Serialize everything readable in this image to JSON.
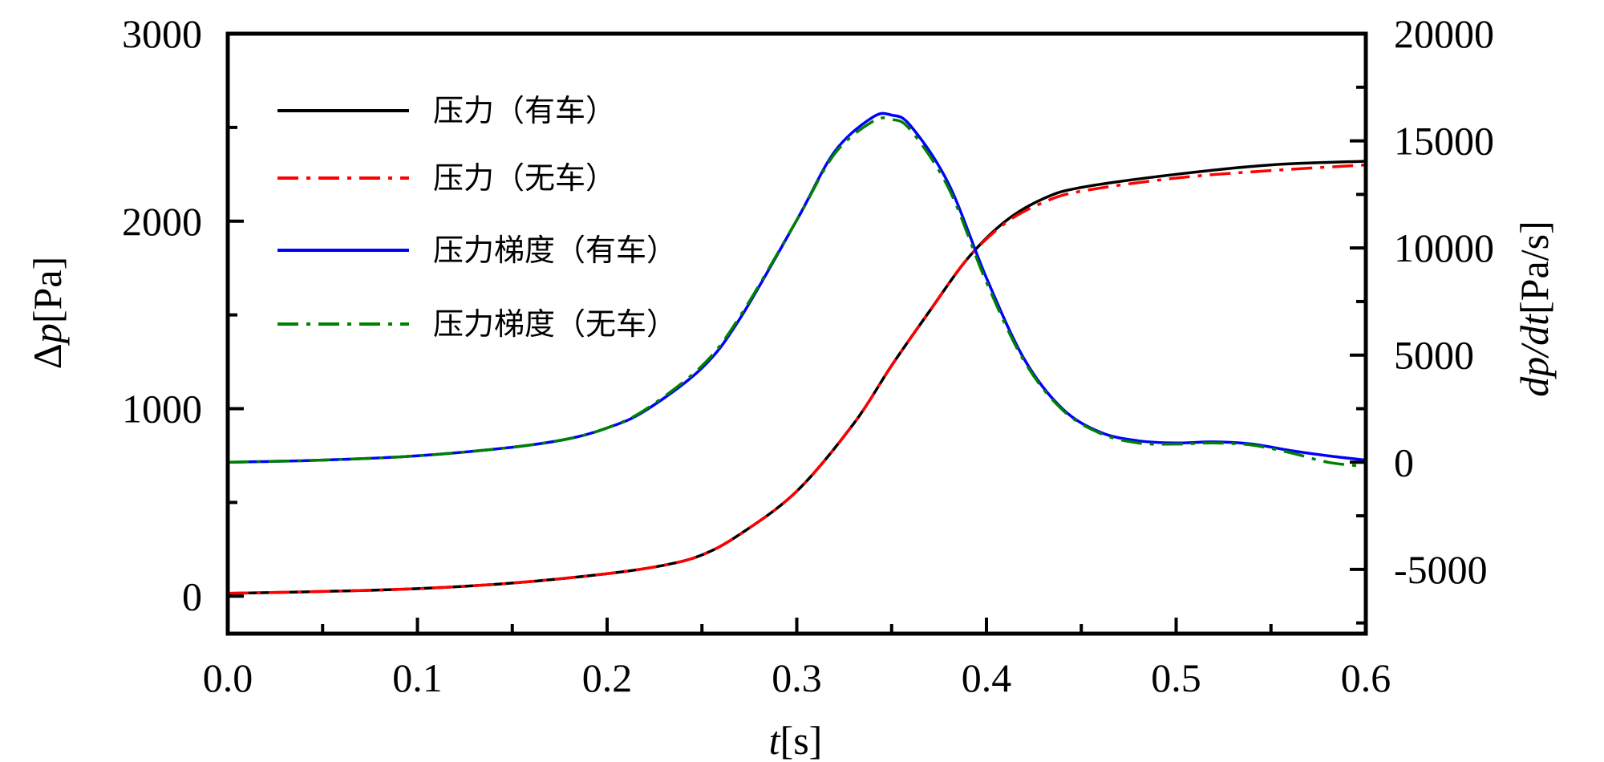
{
  "chart_data": {
    "type": "line",
    "x_axis": {
      "label_italic": "t",
      "label_rest": "[s]",
      "range": [
        0.0,
        0.6
      ],
      "ticks": [
        "0.0",
        "0.1",
        "0.2",
        "0.3",
        "0.4",
        "0.5",
        "0.6"
      ],
      "minor_step": 0.05
    },
    "y_axis_left": {
      "label_prefix": "Δ",
      "label_italic": "p",
      "label_rest": "[Pa]",
      "range": [
        -200,
        3000
      ],
      "ticks": [
        "0",
        "1000",
        "2000",
        "3000"
      ],
      "minor_step": 500
    },
    "y_axis_right": {
      "label_italic": "dp/dt",
      "label_rest": "[Pa/s]",
      "range": [
        -8000,
        20000
      ],
      "ticks": [
        "-5000",
        "0",
        "5000",
        "10000",
        "15000",
        "20000"
      ],
      "minor_step": 2500
    },
    "legend_position": "top-left",
    "series": [
      {
        "name": "压力（有车）",
        "axis": "left",
        "color": "#000000",
        "style": "solid",
        "x": [
          0.0,
          0.05,
          0.1,
          0.15,
          0.2,
          0.23,
          0.25,
          0.27,
          0.3,
          0.33,
          0.35,
          0.37,
          0.39,
          0.41,
          0.43,
          0.45,
          0.5,
          0.55,
          0.6
        ],
        "y": [
          15,
          25,
          40,
          70,
          120,
          165,
          220,
          330,
          560,
          920,
          1230,
          1520,
          1800,
          2000,
          2120,
          2180,
          2250,
          2300,
          2320
        ]
      },
      {
        "name": "压力（无车）",
        "axis": "left",
        "color": "#ff0000",
        "style": "dashdot",
        "x": [
          0.0,
          0.05,
          0.1,
          0.15,
          0.2,
          0.23,
          0.25,
          0.27,
          0.3,
          0.33,
          0.35,
          0.37,
          0.39,
          0.41,
          0.43,
          0.45,
          0.5,
          0.55,
          0.6
        ],
        "y": [
          15,
          25,
          40,
          70,
          120,
          165,
          220,
          330,
          560,
          920,
          1230,
          1520,
          1800,
          1990,
          2100,
          2160,
          2230,
          2270,
          2300
        ]
      },
      {
        "name": "压力梯度（有车）",
        "axis": "right",
        "color": "#0000ff",
        "style": "solid",
        "x": [
          0.0,
          0.05,
          0.1,
          0.15,
          0.18,
          0.2,
          0.22,
          0.25,
          0.27,
          0.3,
          0.32,
          0.34,
          0.35,
          0.36,
          0.38,
          0.4,
          0.42,
          0.44,
          0.46,
          0.48,
          0.5,
          0.52,
          0.54,
          0.56,
          0.58,
          0.6
        ],
        "y": [
          0,
          100,
          300,
          700,
          1100,
          1600,
          2400,
          4400,
          6700,
          11300,
          14500,
          16100,
          16200,
          15700,
          13000,
          8600,
          4800,
          2500,
          1400,
          1000,
          900,
          950,
          850,
          550,
          300,
          100
        ]
      },
      {
        "name": "压力梯度（无车）",
        "axis": "right",
        "color": "#008000",
        "style": "dashdot",
        "x": [
          0.0,
          0.05,
          0.1,
          0.15,
          0.18,
          0.2,
          0.22,
          0.25,
          0.27,
          0.3,
          0.32,
          0.34,
          0.35,
          0.36,
          0.38,
          0.4,
          0.42,
          0.44,
          0.46,
          0.48,
          0.5,
          0.52,
          0.54,
          0.56,
          0.58,
          0.6
        ],
        "y": [
          0,
          100,
          300,
          700,
          1100,
          1600,
          2450,
          4500,
          6800,
          11300,
          14400,
          15900,
          16000,
          15500,
          12800,
          8400,
          4700,
          2450,
          1350,
          900,
          850,
          900,
          800,
          450,
          0,
          -200
        ]
      }
    ]
  }
}
